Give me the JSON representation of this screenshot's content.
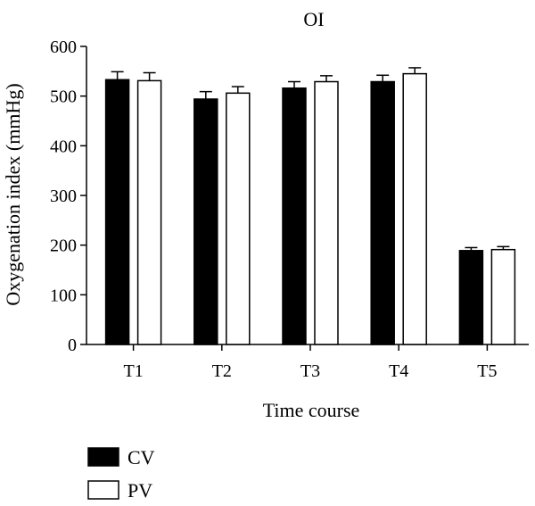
{
  "chart_data": {
    "type": "bar",
    "title": "OI",
    "xlabel": "Time course",
    "ylabel": "Oxygenation index (mmHg)",
    "categories": [
      "T1",
      "T2",
      "T3",
      "T4",
      "T5"
    ],
    "ylim": [
      0,
      600
    ],
    "yticks": [
      0,
      100,
      200,
      300,
      400,
      500,
      600
    ],
    "series": [
      {
        "name": "CV",
        "color": "#000000",
        "fill": "solid",
        "values": [
          533,
          494,
          516,
          529,
          189
        ],
        "errors": [
          16,
          15,
          13,
          13,
          6
        ]
      },
      {
        "name": "PV",
        "color": "#ffffff",
        "fill": "hollow",
        "values": [
          531,
          506,
          529,
          545,
          191
        ],
        "errors": [
          16,
          13,
          12,
          12,
          6
        ]
      }
    ],
    "legend": "bottom-left",
    "grid": false
  }
}
